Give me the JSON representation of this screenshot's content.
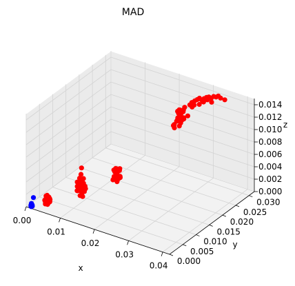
{
  "chart_data": {
    "type": "scatter",
    "projection": "3d",
    "title": "MAD",
    "xlabel": "x",
    "ylabel": "y",
    "zlabel": "z",
    "xlim": [
      0.0,
      0.042
    ],
    "ylim": [
      0.0,
      0.032
    ],
    "zlim": [
      0.0,
      0.015
    ],
    "x_ticks": [
      "0.00",
      "0.01",
      "0.02",
      "0.03",
      "0.04"
    ],
    "y_ticks": [
      "0.000",
      "0.005",
      "0.010",
      "0.015",
      "0.020",
      "0.025",
      "0.030"
    ],
    "z_ticks": [
      "0.000",
      "0.002",
      "0.004",
      "0.006",
      "0.008",
      "0.010",
      "0.012",
      "0.014"
    ],
    "grid": true,
    "pane_color": "#f2f2f2",
    "series": [
      {
        "color": "#ff0000",
        "points": [
          [
            0.004,
            0.002,
            0.001
          ],
          [
            0.0045,
            0.0023,
            0.0012
          ],
          [
            0.005,
            0.0018,
            0.0009
          ],
          [
            0.0042,
            0.0025,
            0.0014
          ],
          [
            0.0048,
            0.0022,
            0.0008
          ],
          [
            0.0052,
            0.0019,
            0.0013
          ],
          [
            0.0038,
            0.0021,
            0.0011
          ],
          [
            0.0046,
            0.0026,
            0.0016
          ],
          [
            0.0043,
            0.0017,
            0.0007
          ],
          [
            0.005,
            0.0024,
            0.0015
          ],
          [
            0.0041,
            0.0022,
            0.0018
          ],
          [
            0.0047,
            0.002,
            0.0006
          ],
          [
            0.0053,
            0.0021,
            0.0011
          ],
          [
            0.0039,
            0.0024,
            0.0009
          ],
          [
            0.0044,
            0.0019,
            0.0017
          ],
          [
            0.0049,
            0.0027,
            0.0012
          ],
          [
            0.0045,
            0.0021,
            0.002
          ],
          [
            0.0051,
            0.0023,
            0.001
          ],
          [
            0.012,
            0.004,
            0.0035
          ],
          [
            0.0125,
            0.0045,
            0.004
          ],
          [
            0.013,
            0.0042,
            0.003
          ],
          [
            0.0118,
            0.0048,
            0.0045
          ],
          [
            0.0135,
            0.005,
            0.0038
          ],
          [
            0.0122,
            0.0038,
            0.005
          ],
          [
            0.0128,
            0.0052,
            0.0042
          ],
          [
            0.0115,
            0.0044,
            0.0033
          ],
          [
            0.0132,
            0.0046,
            0.0055
          ],
          [
            0.0126,
            0.0041,
            0.0028
          ],
          [
            0.0119,
            0.0049,
            0.0039
          ],
          [
            0.0137,
            0.0043,
            0.0036
          ],
          [
            0.0124,
            0.0047,
            0.006
          ],
          [
            0.0129,
            0.0039,
            0.0044
          ],
          [
            0.0121,
            0.0051,
            0.0031
          ],
          [
            0.0133,
            0.0045,
            0.0048
          ],
          [
            0.0117,
            0.0042,
            0.0041
          ],
          [
            0.0127,
            0.0048,
            0.0034
          ],
          [
            0.0131,
            0.004,
            0.0052
          ],
          [
            0.0123,
            0.0053,
            0.0037
          ],
          [
            0.0136,
            0.0047,
            0.0043
          ],
          [
            0.0114,
            0.0046,
            0.0046
          ],
          [
            0.0128,
            0.0044,
            0.0072
          ],
          [
            0.0125,
            0.005,
            0.0049
          ],
          [
            0.0132,
            0.0043,
            0.0027
          ],
          [
            0.012,
            0.0047,
            0.0053
          ],
          [
            0.018,
            0.01,
            0.005
          ],
          [
            0.0185,
            0.0105,
            0.0055
          ],
          [
            0.019,
            0.0098,
            0.0045
          ],
          [
            0.0178,
            0.0108,
            0.006
          ],
          [
            0.0195,
            0.0103,
            0.0052
          ],
          [
            0.0182,
            0.0096,
            0.0048
          ],
          [
            0.0188,
            0.011,
            0.0058
          ],
          [
            0.0175,
            0.0102,
            0.0043
          ],
          [
            0.0192,
            0.0106,
            0.0063
          ],
          [
            0.0186,
            0.0099,
            0.0047
          ],
          [
            0.0179,
            0.0104,
            0.0056
          ],
          [
            0.0197,
            0.0101,
            0.0051
          ],
          [
            0.0183,
            0.0107,
            0.004
          ],
          [
            0.0189,
            0.0097,
            0.0065
          ],
          [
            0.0181,
            0.0109,
            0.0054
          ],
          [
            0.0193,
            0.01,
            0.0049
          ],
          [
            0.0177,
            0.0103,
            0.0059
          ],
          [
            0.0187,
            0.0111,
            0.0046
          ],
          [
            0.0191,
            0.0095,
            0.0057
          ],
          [
            0.0184,
            0.0104,
            0.0062
          ],
          [
            0.025,
            0.025,
            0.011
          ],
          [
            0.0255,
            0.0255,
            0.0115
          ],
          [
            0.026,
            0.0248,
            0.0105
          ],
          [
            0.0248,
            0.0258,
            0.012
          ],
          [
            0.0265,
            0.0253,
            0.0112
          ],
          [
            0.0252,
            0.0246,
            0.0108
          ],
          [
            0.0258,
            0.026,
            0.0118
          ],
          [
            0.0245,
            0.0252,
            0.0103
          ],
          [
            0.0262,
            0.0256,
            0.0123
          ],
          [
            0.0256,
            0.0249,
            0.0107
          ],
          [
            0.0249,
            0.0254,
            0.0116
          ],
          [
            0.0267,
            0.0251,
            0.0111
          ],
          [
            0.0253,
            0.0257,
            0.01
          ],
          [
            0.0259,
            0.0247,
            0.0125
          ],
          [
            0.0251,
            0.0259,
            0.0114
          ],
          [
            0.0263,
            0.025,
            0.0109
          ],
          [
            0.0247,
            0.0253,
            0.0119
          ],
          [
            0.0257,
            0.0261,
            0.0106
          ],
          [
            0.0261,
            0.0245,
            0.0117
          ],
          [
            0.0254,
            0.0254,
            0.0122
          ],
          [
            0.027,
            0.0262,
            0.0113
          ],
          [
            0.0242,
            0.0244,
            0.0098
          ],
          [
            0.0264,
            0.0258,
            0.0127
          ],
          [
            0.025,
            0.0256,
            0.0095
          ],
          [
            0.0258,
            0.0251,
            0.0121
          ],
          [
            0.0273,
            0.0266,
            0.013
          ],
          [
            0.0278,
            0.027,
            0.0133
          ],
          [
            0.0282,
            0.0273,
            0.0136
          ],
          [
            0.0287,
            0.0276,
            0.0138
          ],
          [
            0.0291,
            0.0279,
            0.014
          ],
          [
            0.0275,
            0.0272,
            0.0125
          ],
          [
            0.0284,
            0.0268,
            0.0131
          ],
          [
            0.0289,
            0.0281,
            0.0129
          ],
          [
            0.0279,
            0.0266,
            0.0135
          ],
          [
            0.0295,
            0.0282,
            0.0137
          ],
          [
            0.03,
            0.0285,
            0.0139
          ],
          [
            0.0305,
            0.0288,
            0.0141
          ],
          [
            0.031,
            0.029,
            0.0142
          ],
          [
            0.0297,
            0.0284,
            0.0134
          ],
          [
            0.0303,
            0.0279,
            0.0136
          ],
          [
            0.0315,
            0.0292,
            0.014
          ],
          [
            0.032,
            0.0295,
            0.0143
          ],
          [
            0.0308,
            0.0287,
            0.0138
          ],
          [
            0.0325,
            0.0298,
            0.0142
          ],
          [
            0.033,
            0.03,
            0.0144
          ],
          [
            0.0335,
            0.0302,
            0.0141
          ],
          [
            0.0318,
            0.029,
            0.0135
          ],
          [
            0.0345,
            0.0305,
            0.0139
          ],
          [
            0.024,
            0.025,
            0.0092
          ],
          [
            0.0246,
            0.0242,
            0.0101
          ]
        ]
      },
      {
        "color": "#0000ff",
        "points": [
          [
            0.001,
            0.0005,
            0.0003
          ],
          [
            0.0012,
            0.0006,
            0.0004
          ],
          [
            0.0011,
            0.0004,
            0.0002
          ],
          [
            0.0013,
            0.0005,
            0.0003
          ],
          [
            0.001,
            0.0007,
            0.0005
          ],
          [
            0.0012,
            0.0004,
            0.0001
          ],
          [
            0.0011,
            0.0006,
            0.0004
          ],
          [
            0.0014,
            0.0005,
            0.0002
          ],
          [
            0.001,
            0.0005,
            0.0001
          ],
          [
            0.0013,
            0.0006,
            0.0003
          ],
          [
            0.0015,
            0.0008,
            0.0015
          ]
        ]
      }
    ]
  }
}
